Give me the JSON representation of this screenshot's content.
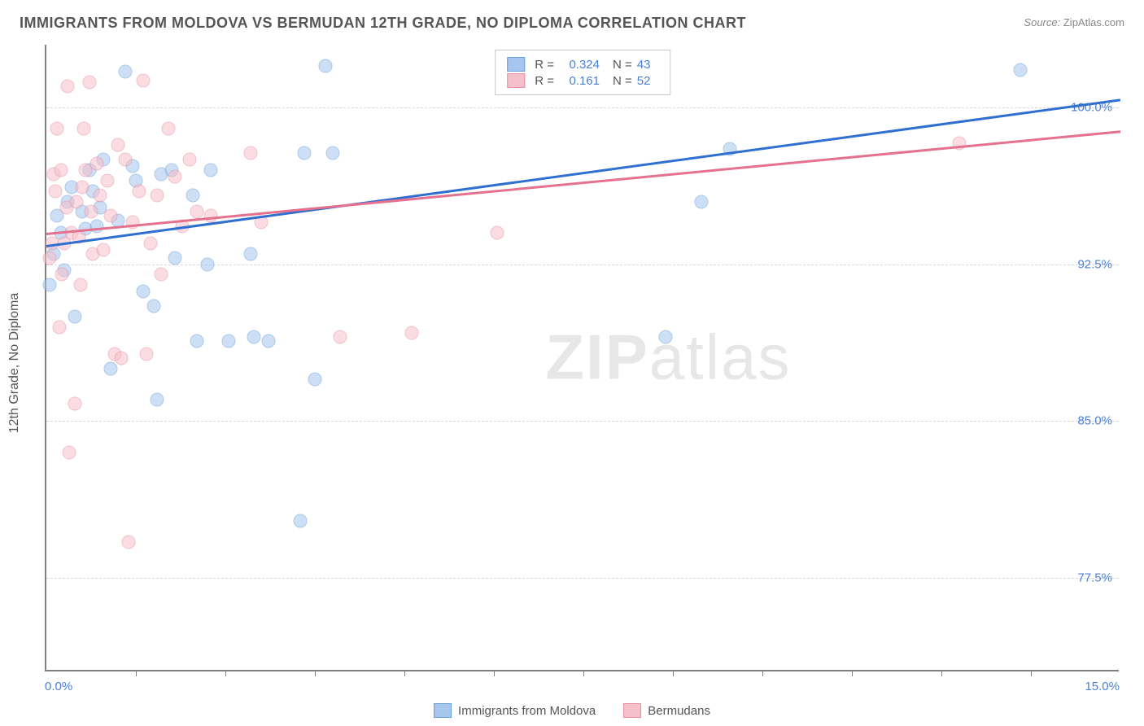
{
  "title": "IMMIGRANTS FROM MOLDOVA VS BERMUDAN 12TH GRADE, NO DIPLOMA CORRELATION CHART",
  "source_label": "Source:",
  "source_value": "ZipAtlas.com",
  "watermark_bold": "ZIP",
  "watermark_light": "atlas",
  "y_axis_title": "12th Grade, No Diploma",
  "chart": {
    "type": "scatter",
    "xlim": [
      0.0,
      15.0
    ],
    "ylim": [
      73.0,
      103.0
    ],
    "x_tick_labels": [
      "0.0%",
      "15.0%"
    ],
    "y_ticks": [
      77.5,
      85.0,
      92.5,
      100.0
    ],
    "y_tick_labels": [
      "77.5%",
      "85.0%",
      "92.5%",
      "100.0%"
    ],
    "x_minor_ticks": [
      1.25,
      2.5,
      3.75,
      5.0,
      6.25,
      7.5,
      8.75,
      10.0,
      11.25,
      12.5,
      13.75
    ],
    "background_color": "#ffffff",
    "grid_color": "#d8d8d8",
    "axis_color": "#808080",
    "point_radius": 8.5,
    "point_opacity": 0.55,
    "series": [
      {
        "name": "Immigrants from Moldova",
        "color_fill": "#a6c6ed",
        "color_stroke": "#6a9fd8",
        "r_value": "0.324",
        "n_value": "43",
        "trend": {
          "x0": 0.0,
          "y0": 93.4,
          "x1": 15.0,
          "y1": 100.4,
          "color": "#2f6fd0"
        },
        "points": [
          [
            0.05,
            91.5
          ],
          [
            0.1,
            93.0
          ],
          [
            0.15,
            94.8
          ],
          [
            0.2,
            94.0
          ],
          [
            0.25,
            92.2
          ],
          [
            0.3,
            95.5
          ],
          [
            0.35,
            96.2
          ],
          [
            0.4,
            90.0
          ],
          [
            0.5,
            95.0
          ],
          [
            0.55,
            94.2
          ],
          [
            0.6,
            97.0
          ],
          [
            0.65,
            96.0
          ],
          [
            0.7,
            94.3
          ],
          [
            0.75,
            95.2
          ],
          [
            0.8,
            97.5
          ],
          [
            0.9,
            87.5
          ],
          [
            1.0,
            94.6
          ],
          [
            1.1,
            101.7
          ],
          [
            1.2,
            97.2
          ],
          [
            1.25,
            96.5
          ],
          [
            1.35,
            91.2
          ],
          [
            1.5,
            90.5
          ],
          [
            1.55,
            86.0
          ],
          [
            1.6,
            96.8
          ],
          [
            1.75,
            97.0
          ],
          [
            1.8,
            92.8
          ],
          [
            2.05,
            95.8
          ],
          [
            2.1,
            88.8
          ],
          [
            2.25,
            92.5
          ],
          [
            2.3,
            97.0
          ],
          [
            2.55,
            88.8
          ],
          [
            2.85,
            93.0
          ],
          [
            2.9,
            89.0
          ],
          [
            3.1,
            88.8
          ],
          [
            3.55,
            80.2
          ],
          [
            3.6,
            97.8
          ],
          [
            3.75,
            87.0
          ],
          [
            3.9,
            102.0
          ],
          [
            4.0,
            97.8
          ],
          [
            8.65,
            89.0
          ],
          [
            9.15,
            95.5
          ],
          [
            9.55,
            98.0
          ],
          [
            13.6,
            101.8
          ]
        ]
      },
      {
        "name": "Bermudans",
        "color_fill": "#f6c0cb",
        "color_stroke": "#e78fa3",
        "r_value": "0.161",
        "n_value": "52",
        "trend": {
          "x0": 0.0,
          "y0": 94.0,
          "x1": 15.0,
          "y1": 98.9,
          "color": "#e4718e"
        },
        "points": [
          [
            0.05,
            92.8
          ],
          [
            0.08,
            93.5
          ],
          [
            0.1,
            96.8
          ],
          [
            0.12,
            96.0
          ],
          [
            0.15,
            99.0
          ],
          [
            0.18,
            89.5
          ],
          [
            0.2,
            97.0
          ],
          [
            0.22,
            92.0
          ],
          [
            0.25,
            93.5
          ],
          [
            0.28,
            95.2
          ],
          [
            0.3,
            101.0
          ],
          [
            0.32,
            83.5
          ],
          [
            0.35,
            94.0
          ],
          [
            0.4,
            85.8
          ],
          [
            0.42,
            95.5
          ],
          [
            0.45,
            93.8
          ],
          [
            0.48,
            91.5
          ],
          [
            0.5,
            96.2
          ],
          [
            0.52,
            99.0
          ],
          [
            0.55,
            97.0
          ],
          [
            0.6,
            101.2
          ],
          [
            0.62,
            95.0
          ],
          [
            0.65,
            93.0
          ],
          [
            0.7,
            97.3
          ],
          [
            0.75,
            95.8
          ],
          [
            0.8,
            93.2
          ],
          [
            0.85,
            96.5
          ],
          [
            0.9,
            94.8
          ],
          [
            0.95,
            88.2
          ],
          [
            1.0,
            98.2
          ],
          [
            1.05,
            88.0
          ],
          [
            1.1,
            97.5
          ],
          [
            1.15,
            79.2
          ],
          [
            1.2,
            94.5
          ],
          [
            1.3,
            96.0
          ],
          [
            1.35,
            101.3
          ],
          [
            1.4,
            88.2
          ],
          [
            1.45,
            93.5
          ],
          [
            1.55,
            95.8
          ],
          [
            1.6,
            92.0
          ],
          [
            1.7,
            99.0
          ],
          [
            1.8,
            96.7
          ],
          [
            1.9,
            94.3
          ],
          [
            2.0,
            97.5
          ],
          [
            2.1,
            95.0
          ],
          [
            2.3,
            94.8
          ],
          [
            2.85,
            97.8
          ],
          [
            3.0,
            94.5
          ],
          [
            4.1,
            89.0
          ],
          [
            5.1,
            89.2
          ],
          [
            6.3,
            94.0
          ],
          [
            12.75,
            98.3
          ]
        ]
      }
    ]
  },
  "legend_bottom": [
    {
      "label": "Immigrants from Moldova",
      "fill": "#a6c6ed",
      "stroke": "#6a9fd8"
    },
    {
      "label": "Bermudans",
      "fill": "#f6c0cb",
      "stroke": "#e78fa3"
    }
  ]
}
